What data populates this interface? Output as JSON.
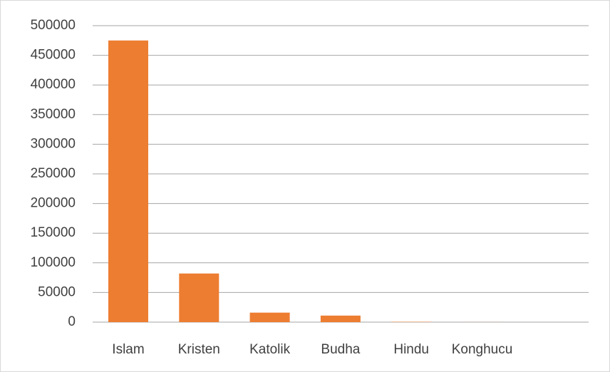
{
  "chart_data": {
    "type": "bar",
    "categories": [
      "Islam",
      "Kristen",
      "Katolik",
      "Budha",
      "Hindu",
      "Konghucu"
    ],
    "values": [
      475000,
      82000,
      16000,
      11000,
      500,
      100
    ],
    "color": "#ed7d31",
    "ylim": [
      0,
      500000
    ],
    "yticks": [
      0,
      50000,
      100000,
      150000,
      200000,
      250000,
      300000,
      350000,
      400000,
      450000,
      500000
    ],
    "grid": true
  }
}
